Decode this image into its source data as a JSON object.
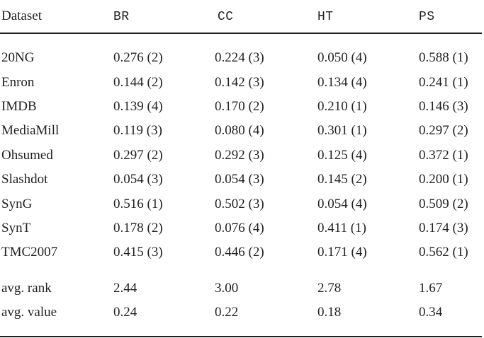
{
  "table": {
    "header": {
      "dataset": "Dataset",
      "cols": [
        "BR",
        "CC",
        "HT",
        "PS"
      ]
    },
    "rows": [
      {
        "name": "20NG",
        "values": [
          "0.276 (2)",
          "0.224 (3)",
          "0.050 (4)",
          "0.588 (1)"
        ]
      },
      {
        "name": "Enron",
        "values": [
          "0.144 (2)",
          "0.142 (3)",
          "0.134 (4)",
          "0.241 (1)"
        ]
      },
      {
        "name": "IMDB",
        "values": [
          "0.139 (4)",
          "0.170 (2)",
          "0.210 (1)",
          "0.146 (3)"
        ]
      },
      {
        "name": "MediaMill",
        "values": [
          "0.119 (3)",
          "0.080 (4)",
          "0.301 (1)",
          "0.297 (2)"
        ]
      },
      {
        "name": "Ohsumed",
        "values": [
          "0.297 (2)",
          "0.292 (3)",
          "0.125 (4)",
          "0.372 (1)"
        ]
      },
      {
        "name": "Slashdot",
        "values": [
          "0.054 (3)",
          "0.054 (3)",
          "0.145 (2)",
          "0.200 (1)"
        ]
      },
      {
        "name": "SynG",
        "values": [
          "0.516 (1)",
          "0.502 (3)",
          "0.054 (4)",
          "0.509 (2)"
        ]
      },
      {
        "name": "SynT",
        "values": [
          "0.178 (2)",
          "0.076 (4)",
          "0.411 (1)",
          "0.174 (3)"
        ]
      },
      {
        "name": "TMC2007",
        "values": [
          "0.415 (3)",
          "0.446 (2)",
          "0.171 (4)",
          "0.562 (1)"
        ]
      }
    ],
    "summary": [
      {
        "name": "avg. rank",
        "values": [
          "2.44",
          "3.00",
          "2.78",
          "1.67"
        ]
      },
      {
        "name": "avg. value",
        "values": [
          "0.24",
          "0.22",
          "0.18",
          "0.34"
        ]
      }
    ]
  }
}
